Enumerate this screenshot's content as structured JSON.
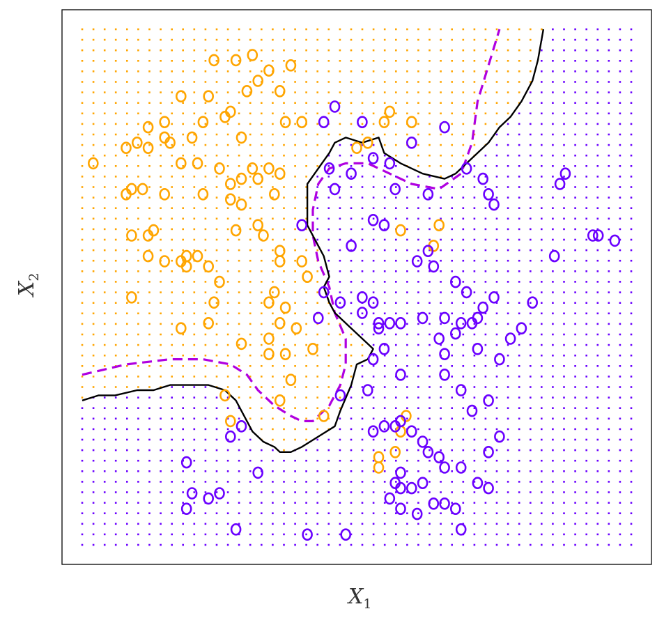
{
  "chart_data": {
    "type": "scatter",
    "title": "",
    "xlabel": {
      "main": "X",
      "sub": "1"
    },
    "ylabel": {
      "main": "X",
      "sub": "2"
    },
    "xlim": [
      0,
      1
    ],
    "ylim": [
      0,
      1
    ],
    "grid": false,
    "legend": "none",
    "colors": {
      "orange": "#FFA500",
      "blue": "#6A00FF",
      "bayes_boundary": "#B000E0",
      "knn_boundary": "#000000",
      "frame": "#000000"
    },
    "background_grid": {
      "spacing": 0.0167,
      "size": 50
    },
    "series": [
      {
        "color": "orange",
        "points": [
          [
            0.24,
            0.94
          ],
          [
            0.28,
            0.94
          ],
          [
            0.31,
            0.95
          ],
          [
            0.34,
            0.92
          ],
          [
            0.38,
            0.93
          ],
          [
            0.32,
            0.9
          ],
          [
            0.36,
            0.88
          ],
          [
            0.3,
            0.88
          ],
          [
            0.23,
            0.87
          ],
          [
            0.18,
            0.87
          ],
          [
            0.27,
            0.84
          ],
          [
            0.22,
            0.82
          ],
          [
            0.12,
            0.81
          ],
          [
            0.15,
            0.82
          ],
          [
            0.37,
            0.82
          ],
          [
            0.2,
            0.79
          ],
          [
            0.26,
            0.83
          ],
          [
            0.4,
            0.82
          ],
          [
            0.29,
            0.79
          ],
          [
            0.15,
            0.79
          ],
          [
            0.12,
            0.77
          ],
          [
            0.02,
            0.74
          ],
          [
            0.08,
            0.77
          ],
          [
            0.1,
            0.78
          ],
          [
            0.16,
            0.78
          ],
          [
            0.21,
            0.74
          ],
          [
            0.18,
            0.74
          ],
          [
            0.25,
            0.73
          ],
          [
            0.31,
            0.73
          ],
          [
            0.34,
            0.73
          ],
          [
            0.36,
            0.72
          ],
          [
            0.27,
            0.7
          ],
          [
            0.29,
            0.71
          ],
          [
            0.32,
            0.71
          ],
          [
            0.08,
            0.68
          ],
          [
            0.09,
            0.69
          ],
          [
            0.11,
            0.69
          ],
          [
            0.15,
            0.68
          ],
          [
            0.22,
            0.68
          ],
          [
            0.27,
            0.67
          ],
          [
            0.35,
            0.68
          ],
          [
            0.29,
            0.66
          ],
          [
            0.32,
            0.62
          ],
          [
            0.09,
            0.6
          ],
          [
            0.13,
            0.61
          ],
          [
            0.12,
            0.6
          ],
          [
            0.19,
            0.56
          ],
          [
            0.21,
            0.56
          ],
          [
            0.28,
            0.61
          ],
          [
            0.33,
            0.6
          ],
          [
            0.36,
            0.57
          ],
          [
            0.36,
            0.55
          ],
          [
            0.4,
            0.55
          ],
          [
            0.41,
            0.52
          ],
          [
            0.19,
            0.54
          ],
          [
            0.18,
            0.55
          ],
          [
            0.12,
            0.56
          ],
          [
            0.15,
            0.55
          ],
          [
            0.23,
            0.54
          ],
          [
            0.25,
            0.51
          ],
          [
            0.09,
            0.48
          ],
          [
            0.24,
            0.47
          ],
          [
            0.34,
            0.47
          ],
          [
            0.35,
            0.49
          ],
          [
            0.37,
            0.46
          ],
          [
            0.18,
            0.42
          ],
          [
            0.23,
            0.43
          ],
          [
            0.36,
            0.43
          ],
          [
            0.39,
            0.42
          ],
          [
            0.34,
            0.4
          ],
          [
            0.34,
            0.37
          ],
          [
            0.29,
            0.39
          ],
          [
            0.37,
            0.37
          ],
          [
            0.42,
            0.38
          ],
          [
            0.38,
            0.32
          ],
          [
            0.26,
            0.29
          ],
          [
            0.36,
            0.28
          ],
          [
            0.27,
            0.24
          ],
          [
            0.44,
            0.25
          ],
          [
            0.59,
            0.25
          ],
          [
            0.58,
            0.22
          ],
          [
            0.57,
            0.18
          ],
          [
            0.54,
            0.17
          ],
          [
            0.54,
            0.15
          ],
          [
            0.65,
            0.62
          ],
          [
            0.58,
            0.61
          ],
          [
            0.64,
            0.58
          ],
          [
            0.5,
            0.77
          ],
          [
            0.52,
            0.78
          ],
          [
            0.55,
            0.82
          ],
          [
            0.56,
            0.84
          ],
          [
            0.6,
            0.82
          ]
        ]
      },
      {
        "color": "blue",
        "points": [
          [
            0.44,
            0.82
          ],
          [
            0.51,
            0.82
          ],
          [
            0.46,
            0.85
          ],
          [
            0.45,
            0.73
          ],
          [
            0.53,
            0.75
          ],
          [
            0.57,
            0.69
          ],
          [
            0.63,
            0.68
          ],
          [
            0.46,
            0.69
          ],
          [
            0.53,
            0.63
          ],
          [
            0.55,
            0.62
          ],
          [
            0.4,
            0.62
          ],
          [
            0.49,
            0.72
          ],
          [
            0.56,
            0.74
          ],
          [
            0.6,
            0.78
          ],
          [
            0.66,
            0.81
          ],
          [
            0.7,
            0.73
          ],
          [
            0.73,
            0.71
          ],
          [
            0.74,
            0.68
          ],
          [
            0.75,
            0.66
          ],
          [
            0.87,
            0.7
          ],
          [
            0.88,
            0.72
          ],
          [
            0.93,
            0.6
          ],
          [
            0.97,
            0.59
          ],
          [
            0.94,
            0.6
          ],
          [
            0.86,
            0.56
          ],
          [
            0.82,
            0.47
          ],
          [
            0.75,
            0.48
          ],
          [
            0.73,
            0.46
          ],
          [
            0.71,
            0.43
          ],
          [
            0.68,
            0.41
          ],
          [
            0.66,
            0.44
          ],
          [
            0.62,
            0.44
          ],
          [
            0.58,
            0.43
          ],
          [
            0.54,
            0.42
          ],
          [
            0.51,
            0.45
          ],
          [
            0.47,
            0.47
          ],
          [
            0.51,
            0.48
          ],
          [
            0.53,
            0.47
          ],
          [
            0.54,
            0.43
          ],
          [
            0.56,
            0.43
          ],
          [
            0.68,
            0.51
          ],
          [
            0.69,
            0.43
          ],
          [
            0.72,
            0.44
          ],
          [
            0.78,
            0.4
          ],
          [
            0.72,
            0.38
          ],
          [
            0.76,
            0.36
          ],
          [
            0.8,
            0.42
          ],
          [
            0.61,
            0.55
          ],
          [
            0.63,
            0.57
          ],
          [
            0.64,
            0.54
          ],
          [
            0.7,
            0.49
          ],
          [
            0.53,
            0.36
          ],
          [
            0.55,
            0.38
          ],
          [
            0.58,
            0.33
          ],
          [
            0.65,
            0.4
          ],
          [
            0.66,
            0.37
          ],
          [
            0.66,
            0.33
          ],
          [
            0.69,
            0.3
          ],
          [
            0.71,
            0.26
          ],
          [
            0.74,
            0.28
          ],
          [
            0.57,
            0.23
          ],
          [
            0.58,
            0.24
          ],
          [
            0.6,
            0.22
          ],
          [
            0.62,
            0.2
          ],
          [
            0.63,
            0.18
          ],
          [
            0.65,
            0.17
          ],
          [
            0.66,
            0.15
          ],
          [
            0.69,
            0.15
          ],
          [
            0.72,
            0.12
          ],
          [
            0.68,
            0.07
          ],
          [
            0.64,
            0.08
          ],
          [
            0.61,
            0.06
          ],
          [
            0.58,
            0.07
          ],
          [
            0.56,
            0.09
          ],
          [
            0.57,
            0.12
          ],
          [
            0.58,
            0.11
          ],
          [
            0.6,
            0.11
          ],
          [
            0.62,
            0.12
          ],
          [
            0.66,
            0.08
          ],
          [
            0.58,
            0.14
          ],
          [
            0.74,
            0.18
          ],
          [
            0.76,
            0.21
          ],
          [
            0.55,
            0.23
          ],
          [
            0.53,
            0.22
          ],
          [
            0.52,
            0.3
          ],
          [
            0.47,
            0.29
          ],
          [
            0.43,
            0.44
          ],
          [
            0.44,
            0.49
          ],
          [
            0.29,
            0.23
          ],
          [
            0.27,
            0.21
          ],
          [
            0.32,
            0.14
          ],
          [
            0.19,
            0.16
          ],
          [
            0.2,
            0.1
          ],
          [
            0.23,
            0.09
          ],
          [
            0.25,
            0.1
          ],
          [
            0.19,
            0.07
          ],
          [
            0.28,
            0.03
          ],
          [
            0.41,
            0.02
          ],
          [
            0.48,
            0.02
          ],
          [
            0.69,
            0.03
          ],
          [
            0.74,
            0.11
          ],
          [
            0.49,
            0.58
          ]
        ]
      }
    ],
    "decision_boundaries": [
      {
        "style": "dashed",
        "color": "bayes_boundary",
        "points": [
          [
            0.0,
            0.33
          ],
          [
            0.08,
            0.35
          ],
          [
            0.16,
            0.36
          ],
          [
            0.22,
            0.36
          ],
          [
            0.27,
            0.35
          ],
          [
            0.3,
            0.33
          ],
          [
            0.32,
            0.3
          ],
          [
            0.35,
            0.27
          ],
          [
            0.38,
            0.25
          ],
          [
            0.4,
            0.24
          ],
          [
            0.42,
            0.24
          ],
          [
            0.45,
            0.27
          ],
          [
            0.47,
            0.31
          ],
          [
            0.48,
            0.35
          ],
          [
            0.48,
            0.4
          ],
          [
            0.46,
            0.45
          ],
          [
            0.45,
            0.5
          ],
          [
            0.43,
            0.55
          ],
          [
            0.42,
            0.6
          ],
          [
            0.42,
            0.65
          ],
          [
            0.43,
            0.7
          ],
          [
            0.45,
            0.73
          ],
          [
            0.48,
            0.74
          ],
          [
            0.52,
            0.74
          ],
          [
            0.56,
            0.72
          ],
          [
            0.6,
            0.7
          ],
          [
            0.65,
            0.69
          ],
          [
            0.69,
            0.72
          ],
          [
            0.71,
            0.78
          ],
          [
            0.72,
            0.86
          ],
          [
            0.74,
            0.93
          ],
          [
            0.76,
            1.0
          ]
        ]
      },
      {
        "style": "solid",
        "color": "knn_boundary",
        "points": [
          [
            0.0,
            0.28
          ],
          [
            0.03,
            0.29
          ],
          [
            0.06,
            0.29
          ],
          [
            0.1,
            0.3
          ],
          [
            0.13,
            0.3
          ],
          [
            0.16,
            0.31
          ],
          [
            0.19,
            0.31
          ],
          [
            0.23,
            0.31
          ],
          [
            0.26,
            0.3
          ],
          [
            0.28,
            0.28
          ],
          [
            0.3,
            0.24
          ],
          [
            0.31,
            0.22
          ],
          [
            0.33,
            0.2
          ],
          [
            0.35,
            0.19
          ],
          [
            0.36,
            0.18
          ],
          [
            0.38,
            0.18
          ],
          [
            0.4,
            0.19
          ],
          [
            0.43,
            0.21
          ],
          [
            0.46,
            0.23
          ],
          [
            0.47,
            0.26
          ],
          [
            0.49,
            0.31
          ],
          [
            0.5,
            0.35
          ],
          [
            0.52,
            0.36
          ],
          [
            0.53,
            0.38
          ],
          [
            0.52,
            0.39
          ],
          [
            0.49,
            0.42
          ],
          [
            0.46,
            0.45
          ],
          [
            0.45,
            0.47
          ],
          [
            0.44,
            0.5
          ],
          [
            0.45,
            0.52
          ],
          [
            0.44,
            0.56
          ],
          [
            0.43,
            0.58
          ],
          [
            0.41,
            0.62
          ],
          [
            0.41,
            0.66
          ],
          [
            0.41,
            0.7
          ],
          [
            0.43,
            0.73
          ],
          [
            0.45,
            0.76
          ],
          [
            0.46,
            0.78
          ],
          [
            0.48,
            0.79
          ],
          [
            0.51,
            0.78
          ],
          [
            0.54,
            0.79
          ],
          [
            0.55,
            0.76
          ],
          [
            0.58,
            0.74
          ],
          [
            0.62,
            0.72
          ],
          [
            0.66,
            0.71
          ],
          [
            0.68,
            0.72
          ],
          [
            0.71,
            0.75
          ],
          [
            0.74,
            0.78
          ],
          [
            0.76,
            0.81
          ],
          [
            0.78,
            0.83
          ],
          [
            0.8,
            0.86
          ],
          [
            0.82,
            0.9
          ],
          [
            0.83,
            0.94
          ],
          [
            0.84,
            1.0
          ]
        ]
      }
    ]
  }
}
